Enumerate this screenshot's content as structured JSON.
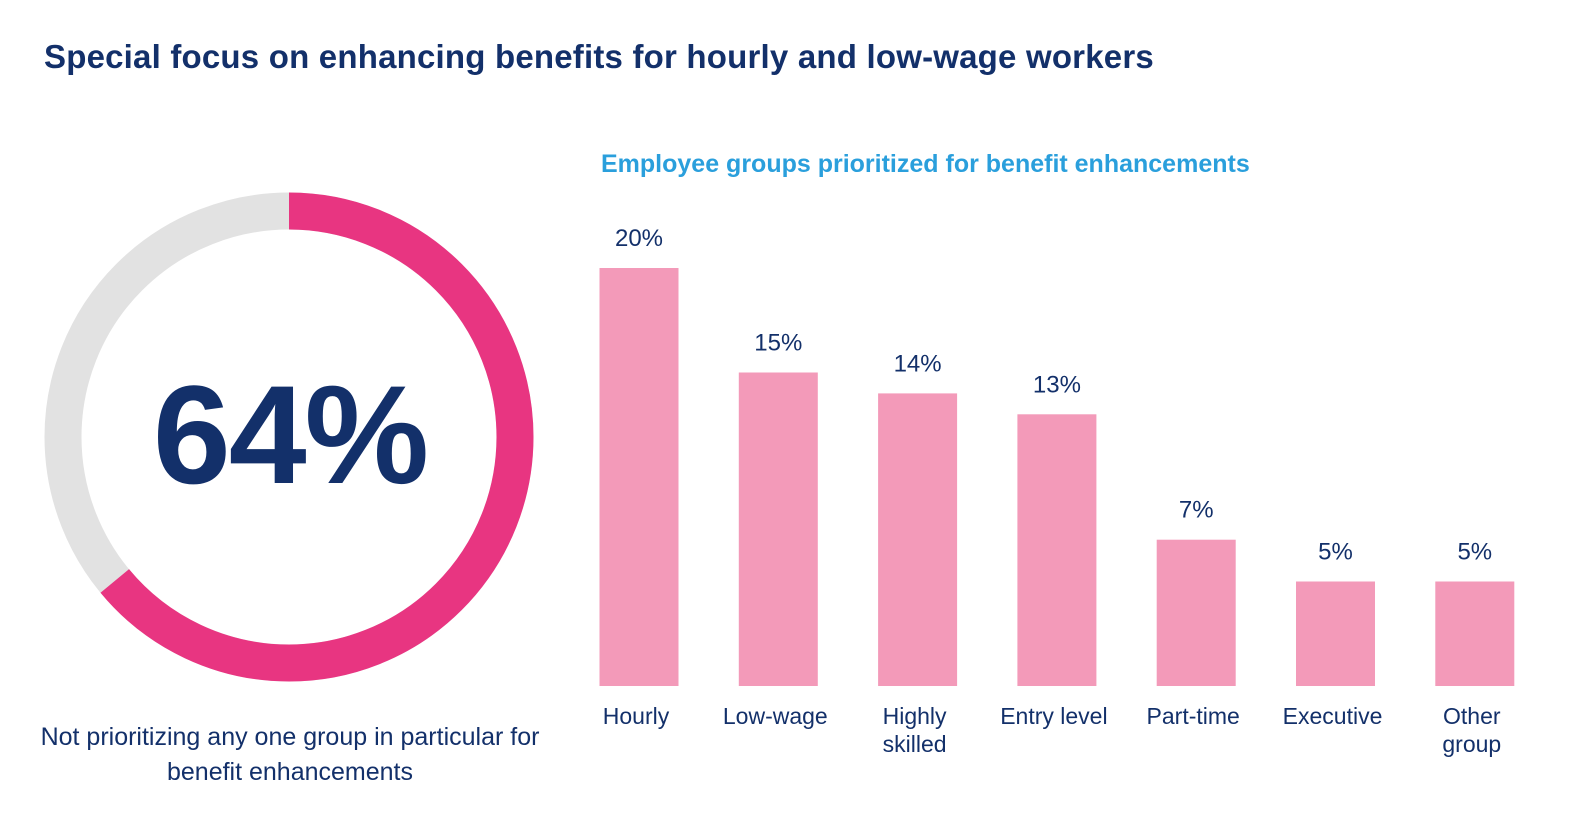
{
  "page": {
    "title": "Special focus on enhancing benefits for hourly and low-wage workers"
  },
  "highlight": {
    "value_text": "64%",
    "percent": 64,
    "caption": "Not prioritizing any one group in particular for benefit enhancements",
    "colors": {
      "filled": "#e83581",
      "remainder": "#e2e2e2"
    }
  },
  "chart_data": {
    "type": "bar",
    "title": "Employee groups prioritized for benefit enhancements",
    "xlabel": "",
    "ylabel": "",
    "ylim": [
      0,
      20
    ],
    "grid": false,
    "unit": "%",
    "categories": [
      [
        "Hourly"
      ],
      [
        "Low-wage"
      ],
      [
        "Highly",
        "skilled"
      ],
      [
        "Entry level"
      ],
      [
        "Part-time"
      ],
      [
        "Executive"
      ],
      [
        "Other",
        "group"
      ]
    ],
    "values": [
      20,
      15,
      14,
      13,
      7,
      5,
      5
    ],
    "value_labels": [
      "20%",
      "15%",
      "14%",
      "13%",
      "7%",
      "5%",
      "5%"
    ],
    "bar_color": "#f39ab9",
    "text_color": "#13306a"
  }
}
